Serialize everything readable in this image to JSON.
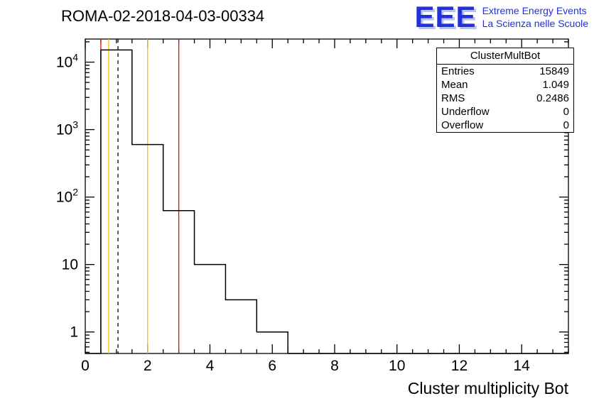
{
  "header": {
    "title": "ROMA-02-2018-04-03-00334"
  },
  "logo": {
    "eee": "EEE",
    "line1": "Extreme Energy Events",
    "line2": "La Scienza nelle Scuole",
    "color": "#2230dd"
  },
  "stats": {
    "title": "ClusterMultBot",
    "rows": [
      {
        "label": "Entries",
        "value": "15849"
      },
      {
        "label": "Mean",
        "value": "1.049"
      },
      {
        "label": "RMS",
        "value": "0.2486"
      },
      {
        "label": "Underflow",
        "value": "0"
      },
      {
        "label": "Overflow",
        "value": "0"
      }
    ]
  },
  "chart_data": {
    "type": "bar",
    "title": "ROMA-02-2018-04-03-00334",
    "xlabel": "Cluster multiplicity Bot",
    "ylabel": "",
    "x_range": [
      0,
      15.5
    ],
    "y_scale": "log",
    "y_range": [
      0.48,
      22000
    ],
    "bin_width": 1,
    "bin_centers": [
      1,
      2,
      3,
      4,
      5,
      6
    ],
    "values": [
      15172,
      600,
      63,
      10,
      3,
      1
    ],
    "x_major_ticks": [
      0,
      2,
      4,
      6,
      8,
      10,
      12,
      14
    ],
    "x_minor_step": 0.5,
    "y_major_ticks": [
      1,
      10,
      100,
      1000,
      10000
    ],
    "y_tick_labels": [
      "1",
      "10",
      "10^2",
      "10^3",
      "10^4"
    ],
    "line_color": "#000000",
    "grid": false,
    "legend_position": "stats box top-right",
    "marker_lines": [
      {
        "x": 0.5,
        "color": "#ff0000",
        "style": "solid"
      },
      {
        "x": 0.75,
        "color": "#ffbf00",
        "style": "solid"
      },
      {
        "x": 1.05,
        "color": "#000000",
        "style": "dashed"
      },
      {
        "x": 2.0,
        "color": "#ffbf00",
        "style": "solid"
      },
      {
        "x": 3.0,
        "color": "#ff0000",
        "style": "solid"
      }
    ]
  }
}
